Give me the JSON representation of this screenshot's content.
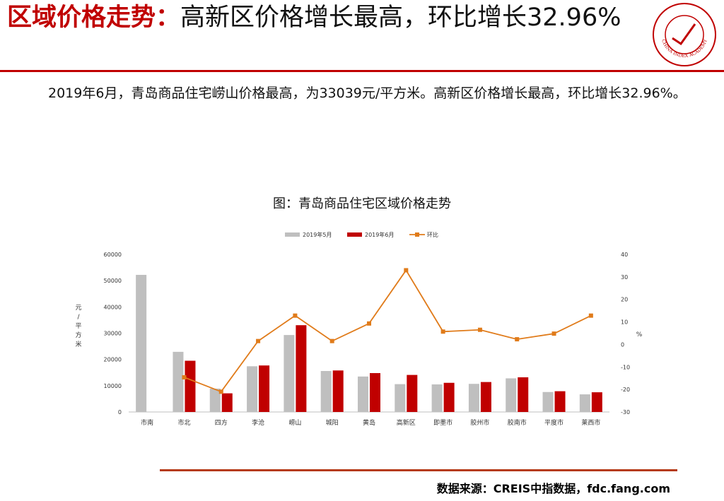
{
  "slide": {
    "title_accent": "区域价格走势：",
    "title_rest": "高新区价格增长最高，环比增长32.96%",
    "body": "2019年6月，青岛商品住宅崂山价格最高，为33039元/平方米。高新区价格增长最高，环比增长32.96%。",
    "source": "数据来源：CREIS中指数据，fdc.fang.com"
  },
  "logo": {
    "icon": "china-index-academy-seal",
    "text": "CHINA INDEX ACADEMY"
  },
  "colors": {
    "accent": "#c00000",
    "bar_may": "#bfbfbf",
    "bar_june": "#c00000",
    "line_mom": "#e07b1a",
    "rule_bottom": "#b53a16"
  },
  "chart_data": {
    "type": "bar",
    "title": "图：青岛商品住宅区域价格走势",
    "ylabel": "元/平方米",
    "y2label": "%",
    "ylim": [
      0,
      60000
    ],
    "y2lim": [
      -30,
      40
    ],
    "yticks": [
      0,
      10000,
      20000,
      30000,
      40000,
      50000,
      60000
    ],
    "y2ticks": [
      -30,
      -20,
      -10,
      0,
      10,
      20,
      30,
      40
    ],
    "grid": false,
    "legend_position": "top",
    "categories": [
      "市南",
      "市北",
      "四方",
      "李沧",
      "崂山",
      "城阳",
      "黄岛",
      "高新区",
      "即墨市",
      "胶州市",
      "胶南市",
      "平度市",
      "莱西市"
    ],
    "series": [
      {
        "name": "2019年5月",
        "type": "bar",
        "axis": "left",
        "values": [
          52200,
          22900,
          8900,
          17400,
          29300,
          15600,
          13500,
          10600,
          10500,
          10700,
          12800,
          7600,
          6700
        ]
      },
      {
        "name": "2019年6月",
        "type": "bar",
        "axis": "left",
        "values": [
          null,
          19500,
          7100,
          17700,
          33039,
          15800,
          14800,
          14100,
          11100,
          11400,
          13200,
          7900,
          7500
        ]
      },
      {
        "name": "环比",
        "type": "line",
        "axis": "right",
        "values": [
          null,
          -14.6,
          -21.0,
          1.5,
          12.8,
          1.5,
          9.3,
          32.96,
          5.7,
          6.5,
          2.3,
          4.8,
          12.8
        ]
      }
    ]
  }
}
